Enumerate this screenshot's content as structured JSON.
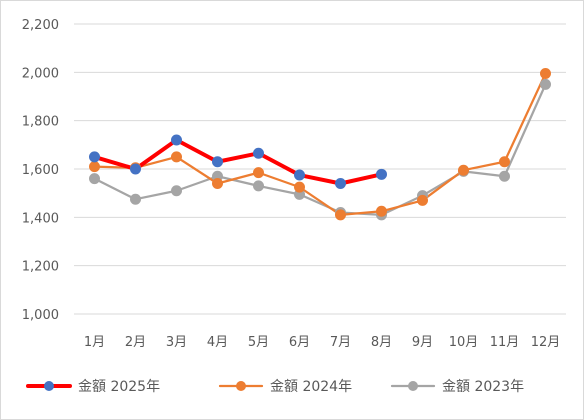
{
  "chart_data": {
    "type": "line",
    "categories": [
      "1月",
      "2月",
      "3月",
      "4月",
      "5月",
      "6月",
      "7月",
      "8月",
      "9月",
      "10月",
      "11月",
      "12月"
    ],
    "ylim": [
      1000,
      2200
    ],
    "yticks": [
      "1,000",
      "1,200",
      "1,400",
      "1,600",
      "1,800",
      "2,000",
      "2,200"
    ],
    "ytick_values": [
      1000,
      1200,
      1400,
      1600,
      1800,
      2000,
      2200
    ],
    "grid": true,
    "legend_position": "bottom",
    "series": [
      {
        "name": "金額 2025年",
        "color": "#ff0000",
        "marker_color": "#4472c4",
        "values": [
          1650,
          1600,
          1720,
          1630,
          1665,
          1575,
          1540,
          1578,
          null,
          null,
          null,
          null
        ]
      },
      {
        "name": "金額 2024年",
        "color": "#ed7d31",
        "marker_color": "#ed7d31",
        "values": [
          1610,
          1605,
          1650,
          1540,
          1585,
          1525,
          1410,
          1425,
          1470,
          1595,
          1630,
          1995
        ]
      },
      {
        "name": "金額 2023年",
        "color": "#a5a5a5",
        "marker_color": "#a5a5a5",
        "values": [
          1560,
          1475,
          1510,
          1570,
          1530,
          1495,
          1420,
          1410,
          1490,
          1590,
          1570,
          1950
        ]
      }
    ]
  }
}
